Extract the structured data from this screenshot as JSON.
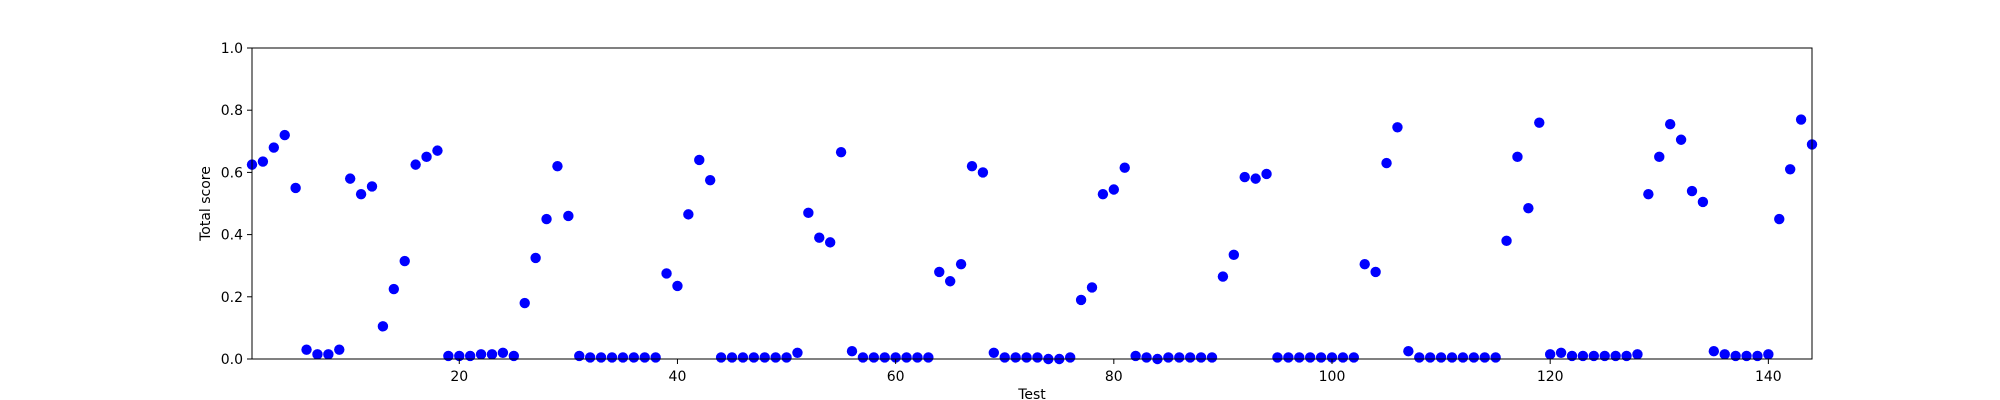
{
  "chart_data": {
    "type": "scatter",
    "xlabel": "Test",
    "ylabel": "Total score",
    "xlim": [
      1,
      144
    ],
    "ylim": [
      0.0,
      1.0
    ],
    "xticks": [
      20,
      40,
      60,
      80,
      100,
      120,
      140
    ],
    "xtick_labels": [
      "20",
      "40",
      "60",
      "80",
      "100",
      "120",
      "140"
    ],
    "yticks": [
      0.0,
      0.2,
      0.4,
      0.6,
      0.8,
      1.0
    ],
    "ytick_labels": [
      "0.0",
      "0.2",
      "0.4",
      "0.6",
      "0.8",
      "1.0"
    ],
    "grid": false,
    "marker_color": "#0000ff",
    "series": [
      {
        "x": [
          1,
          2,
          3,
          4,
          5,
          6,
          7,
          8,
          9,
          10,
          11,
          12,
          13,
          14,
          15,
          16,
          17,
          18,
          19,
          20,
          21,
          22,
          23,
          24,
          25,
          26,
          27,
          28,
          29,
          30,
          31,
          32,
          33,
          34,
          35,
          36,
          37,
          38,
          39,
          40,
          41,
          42,
          43,
          44,
          45,
          46,
          47,
          48,
          49,
          50,
          51,
          52,
          53,
          54,
          55,
          56,
          57,
          58,
          59,
          60,
          61,
          62,
          63,
          64,
          65,
          66,
          67,
          68,
          69,
          70,
          71,
          72,
          73,
          74,
          75,
          76,
          77,
          78,
          79,
          80,
          81,
          82,
          83,
          84,
          85,
          86,
          87,
          88,
          89,
          90,
          91,
          92,
          93,
          94,
          95,
          96,
          97,
          98,
          99,
          100,
          101,
          102,
          103,
          104,
          105,
          106,
          107,
          108,
          109,
          110,
          111,
          112,
          113,
          114,
          115,
          116,
          117,
          118,
          119,
          120,
          121,
          122,
          123,
          124,
          125,
          126,
          127,
          128,
          129,
          130,
          131,
          132,
          133,
          134,
          135,
          136,
          137,
          138,
          139,
          140,
          141,
          142,
          143,
          144
        ],
        "y": [
          0.625,
          0.635,
          0.68,
          0.72,
          0.55,
          0.03,
          0.015,
          0.015,
          0.03,
          0.58,
          0.53,
          0.555,
          0.105,
          0.225,
          0.315,
          0.625,
          0.65,
          0.67,
          0.01,
          0.01,
          0.01,
          0.015,
          0.015,
          0.02,
          0.01,
          0.18,
          0.325,
          0.45,
          0.62,
          0.46,
          0.01,
          0.005,
          0.005,
          0.005,
          0.005,
          0.005,
          0.005,
          0.005,
          0.275,
          0.235,
          0.465,
          0.64,
          0.575,
          0.005,
          0.005,
          0.005,
          0.005,
          0.005,
          0.005,
          0.005,
          0.02,
          0.47,
          0.39,
          0.375,
          0.665,
          0.025,
          0.005,
          0.005,
          0.005,
          0.005,
          0.005,
          0.005,
          0.005,
          0.28,
          0.25,
          0.305,
          0.62,
          0.6,
          0.02,
          0.005,
          0.005,
          0.005,
          0.005,
          0.0,
          0.0,
          0.005,
          0.19,
          0.23,
          0.53,
          0.545,
          0.615,
          0.01,
          0.005,
          0.0,
          0.005,
          0.005,
          0.005,
          0.005,
          0.005,
          0.265,
          0.335,
          0.585,
          0.58,
          0.595,
          0.005,
          0.005,
          0.005,
          0.005,
          0.005,
          0.005,
          0.005,
          0.005,
          0.305,
          0.28,
          0.63,
          0.745,
          0.025,
          0.005,
          0.005,
          0.005,
          0.005,
          0.005,
          0.005,
          0.005,
          0.005,
          0.38,
          0.65,
          0.485,
          0.76,
          0.015,
          0.02,
          0.01,
          0.01,
          0.01,
          0.01,
          0.01,
          0.01,
          0.015,
          0.53,
          0.65,
          0.755,
          0.705,
          0.54,
          0.505,
          0.025,
          0.015,
          0.01,
          0.01,
          0.01,
          0.015,
          0.45,
          0.61,
          0.77,
          0.69
        ]
      }
    ]
  }
}
